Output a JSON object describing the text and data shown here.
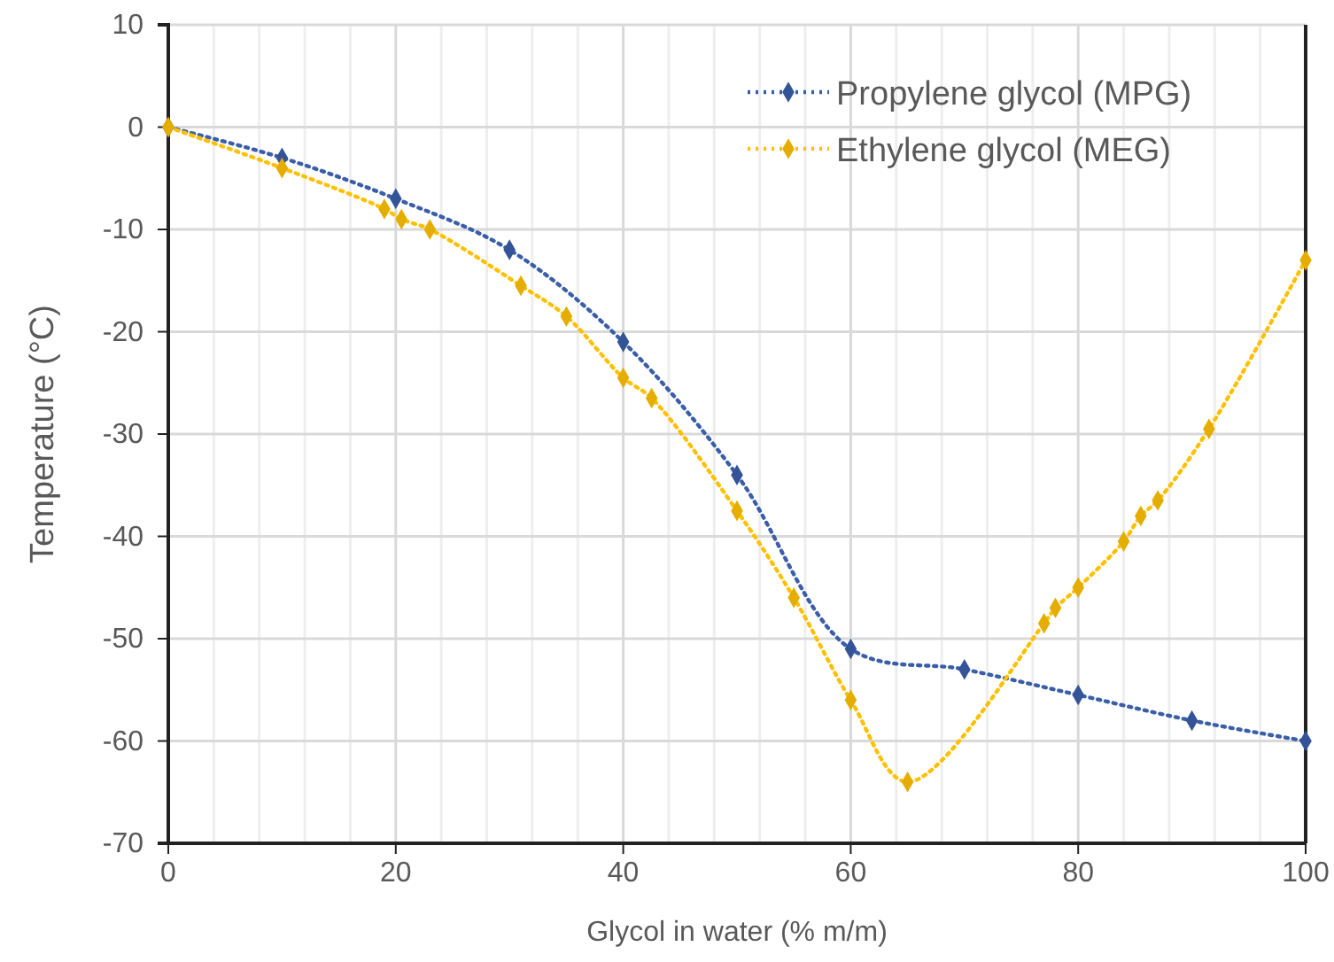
{
  "chart_data": {
    "type": "line",
    "xlabel": "Glycol in water (% m/m)",
    "ylabel": "Temperature  (°C)",
    "xlim": [
      0,
      100
    ],
    "ylim": [
      -70,
      10
    ],
    "xticks": [
      0,
      {
        "value": 4,
        "label": null
      },
      {
        "value": 8,
        "label": null
      },
      {
        "value": 12,
        "label": null
      },
      {
        "value": 16,
        "label": null
      },
      20,
      {
        "value": 24,
        "label": null
      },
      {
        "value": 28,
        "label": null
      },
      {
        "value": 32,
        "label": null
      },
      {
        "value": 36,
        "label": null
      },
      40,
      {
        "value": 44,
        "label": null
      },
      {
        "value": 48,
        "label": null
      },
      {
        "value": 52,
        "label": null
      },
      {
        "value": 56,
        "label": null
      },
      60,
      {
        "value": 64,
        "label": null
      },
      {
        "value": 68,
        "label": null
      },
      {
        "value": 72,
        "label": null
      },
      {
        "value": 76,
        "label": null
      },
      80,
      {
        "value": 84,
        "label": null
      },
      {
        "value": 88,
        "label": null
      },
      {
        "value": 92,
        "label": null
      },
      {
        "value": 96,
        "label": null
      },
      100
    ],
    "yticks": [
      -70,
      -60,
      -50,
      -40,
      -30,
      -20,
      -10,
      0,
      10
    ],
    "grid": true,
    "legend": "top right",
    "marker": "diamond",
    "line_style": "dotted",
    "series": [
      {
        "name": "Propylene glycol (MPG)",
        "color": "#3a5ea8",
        "x": [
          0,
          10,
          20,
          30,
          40,
          50,
          60,
          70,
          80,
          90,
          100
        ],
        "values": [
          0,
          -3,
          -7,
          -12,
          -21,
          -34,
          -51,
          -53,
          -55.5,
          -58,
          -60
        ]
      },
      {
        "name": "Ethylene glycol (MEG)",
        "color": "#ffc000",
        "x": [
          0,
          10,
          19,
          20.5,
          23,
          31,
          35,
          40,
          42.5,
          50,
          55,
          60,
          65,
          77,
          78,
          80,
          84,
          85.5,
          87,
          91.5,
          100
        ],
        "values": [
          0,
          -4,
          -8,
          -9,
          -10,
          -15.5,
          -18.5,
          -24.5,
          -26.5,
          -37.5,
          -46,
          -56,
          -64,
          -48.5,
          -47,
          -45,
          -40.5,
          -38,
          -36.5,
          -29.5,
          -13
        ]
      }
    ]
  }
}
